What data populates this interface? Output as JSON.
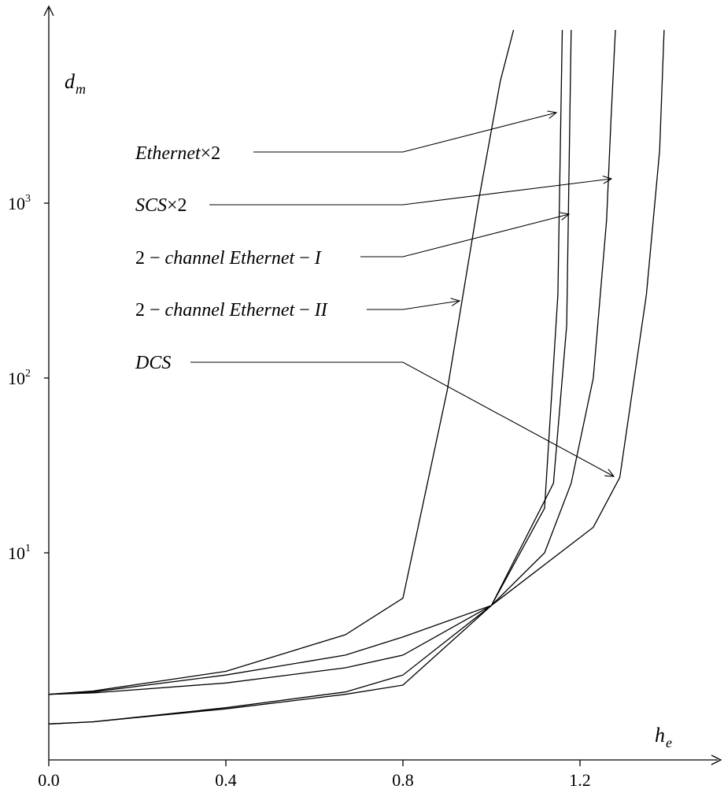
{
  "chart_data": {
    "type": "line",
    "title": "",
    "xlabel": {
      "main": "h",
      "sub": "e"
    },
    "ylabel": {
      "main": "d",
      "sub": "m"
    },
    "xlim": [
      0.0,
      1.54
    ],
    "ylim": [
      1.0,
      20000
    ],
    "yscale": "log",
    "grid": false,
    "x_ticks": [
      {
        "value": 0.0,
        "label": "0.0"
      },
      {
        "value": 0.4,
        "label": "0.4"
      },
      {
        "value": 0.8,
        "label": "0.8"
      },
      {
        "value": 1.2,
        "label": "1.2"
      }
    ],
    "y_ticks": [
      {
        "value": 10,
        "base": "10",
        "exp": "1"
      },
      {
        "value": 100,
        "base": "10",
        "exp": "2"
      },
      {
        "value": 1000,
        "base": "10",
        "exp": "3"
      }
    ],
    "series": [
      {
        "name": "Ethernet×2",
        "points": [
          [
            0.0,
            1.55
          ],
          [
            0.1,
            1.62
          ],
          [
            0.4,
            2.1
          ],
          [
            0.67,
            3.4
          ],
          [
            0.8,
            5.5
          ],
          [
            0.9,
            85
          ],
          [
            0.97,
            1000
          ],
          [
            1.02,
            5000
          ],
          [
            1.05,
            20000
          ]
        ]
      },
      {
        "name": "SCS×2",
        "points": [
          [
            0.0,
            1.55
          ],
          [
            0.1,
            1.6
          ],
          [
            0.4,
            2.0
          ],
          [
            0.67,
            2.6
          ],
          [
            0.8,
            3.3
          ],
          [
            1.0,
            5.0
          ],
          [
            1.12,
            10
          ],
          [
            1.18,
            25
          ],
          [
            1.23,
            100
          ],
          [
            1.26,
            800
          ],
          [
            1.27,
            3000
          ],
          [
            1.28,
            20000
          ]
        ]
      },
      {
        "name": "2-channel Ethernet-I",
        "points": [
          [
            0.0,
            1.05
          ],
          [
            0.1,
            1.08
          ],
          [
            0.4,
            1.28
          ],
          [
            0.67,
            1.55
          ],
          [
            0.8,
            1.75
          ],
          [
            1.0,
            5.0
          ],
          [
            1.12,
            18
          ],
          [
            1.15,
            300
          ],
          [
            1.16,
            20000
          ]
        ]
      },
      {
        "name": "2-channel Ethernet-II",
        "points": [
          [
            0.0,
            1.05
          ],
          [
            0.1,
            1.08
          ],
          [
            0.4,
            1.3
          ],
          [
            0.67,
            1.6
          ],
          [
            0.8,
            2.0
          ],
          [
            1.0,
            5.0
          ],
          [
            1.14,
            25
          ],
          [
            1.17,
            200
          ],
          [
            1.18,
            20000
          ]
        ]
      },
      {
        "name": "DCS",
        "points": [
          [
            0.0,
            1.55
          ],
          [
            0.1,
            1.58
          ],
          [
            0.4,
            1.8
          ],
          [
            0.67,
            2.2
          ],
          [
            0.8,
            2.6
          ],
          [
            1.0,
            5.0
          ],
          [
            1.23,
            14
          ],
          [
            1.29,
            27
          ],
          [
            1.35,
            300
          ],
          [
            1.38,
            2000
          ],
          [
            1.39,
            20000
          ]
        ]
      }
    ],
    "annotations": [
      {
        "label_parts": [
          "Ethernet",
          "×2"
        ],
        "curve": "Ethernet×2"
      },
      {
        "label_parts": [
          "SCS",
          "×2"
        ],
        "curve": "SCS×2"
      },
      {
        "label_parts": [
          "2",
          " − ",
          "channel Ethernet",
          " − ",
          "I"
        ],
        "curve": "2-channel Ethernet-I"
      },
      {
        "label_parts": [
          "2",
          " − ",
          "channel Ethernet",
          " − ",
          "II"
        ],
        "curve": "2-channel Ethernet-II"
      },
      {
        "label_parts": [
          "DCS"
        ],
        "curve": "DCS"
      }
    ]
  }
}
